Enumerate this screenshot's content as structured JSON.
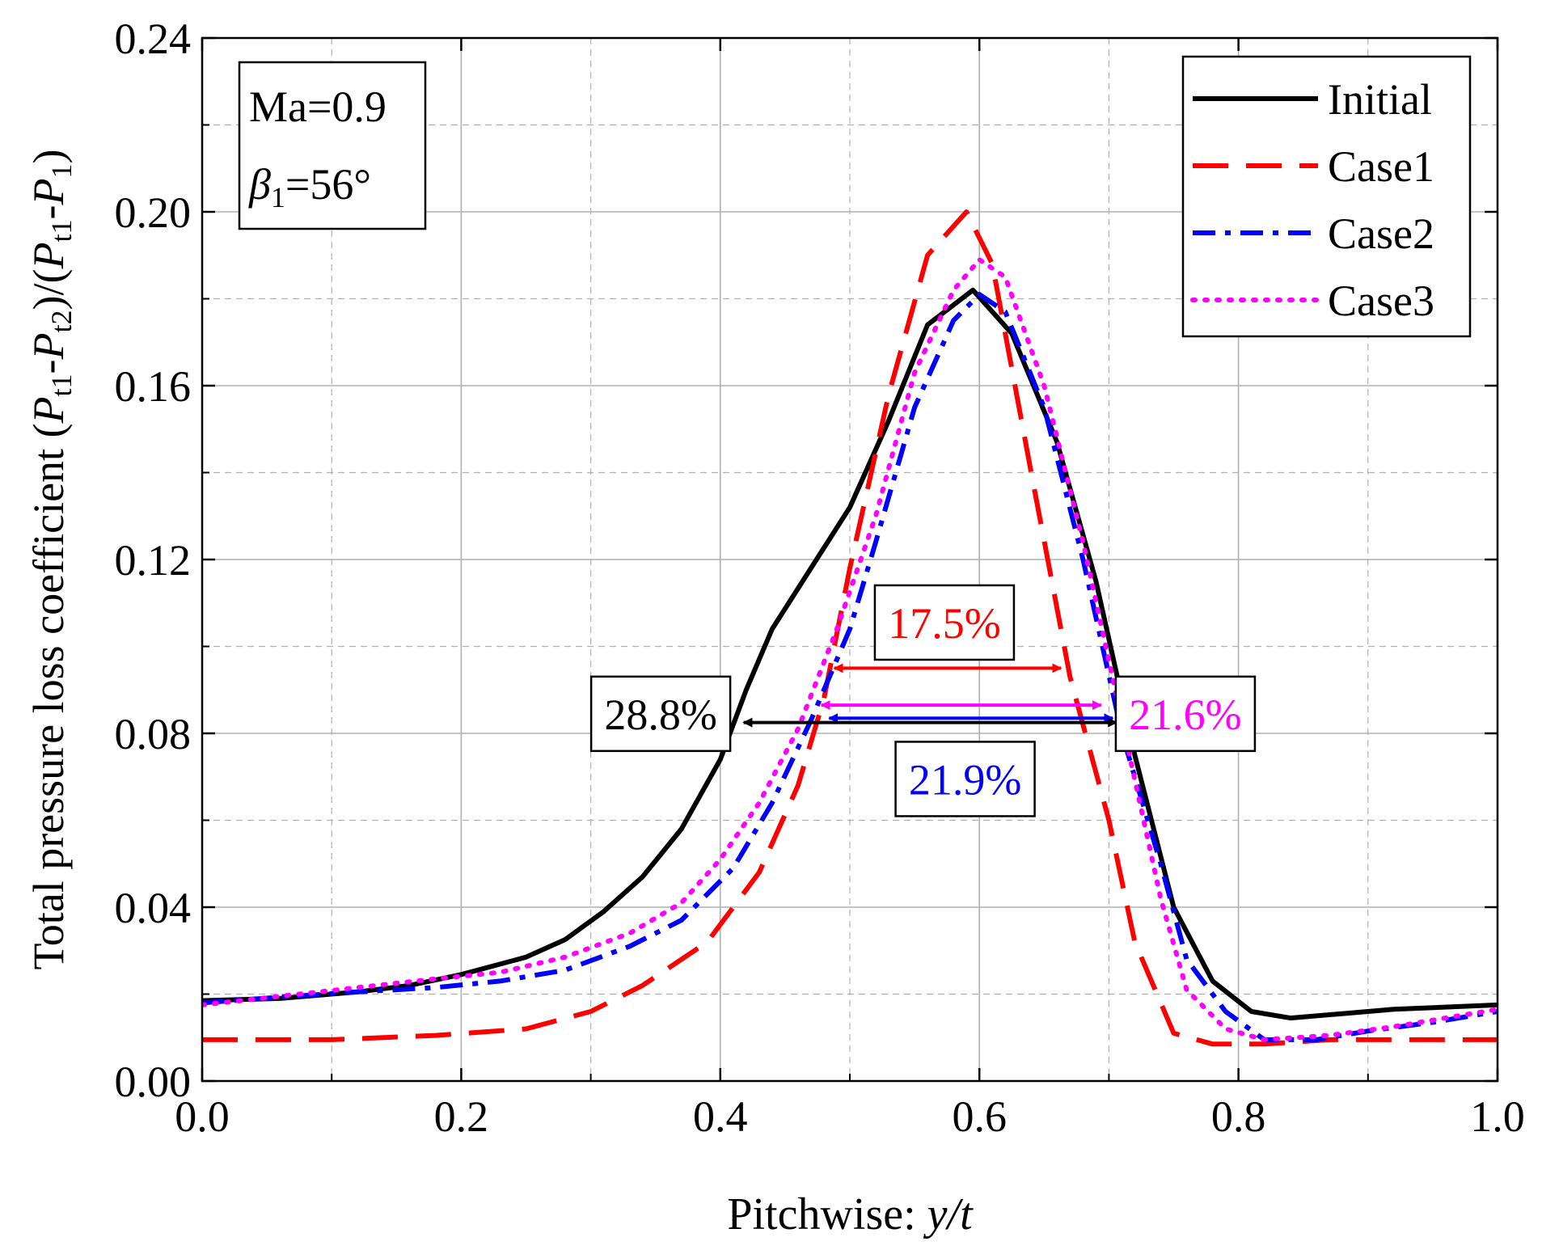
{
  "chart_data": {
    "type": "line",
    "title": "",
    "xlabel": "Pitchwise: ",
    "xlabel_var": "y/t",
    "ylabel": "Total pressure loss coefficient (P t1 - P t2 )/(P t1 - P 1 )",
    "xlim": [
      0.0,
      1.0
    ],
    "ylim": [
      0.0,
      0.24
    ],
    "x_ticks": [
      "0.0",
      "0.2",
      "0.4",
      "0.6",
      "0.8",
      "1.0"
    ],
    "y_ticks": [
      "0.00",
      "0.04",
      "0.08",
      "0.12",
      "0.16",
      "0.20",
      "0.24"
    ],
    "grid": true,
    "legend_position": "top-right",
    "condition_box": {
      "line1": "Ma=0.9",
      "line2_symbol": "β",
      "line2_sub": "1",
      "line2_value": "=56°"
    },
    "series": [
      {
        "name": "Initial",
        "color": "#000000",
        "style": "solid",
        "points": [
          [
            0.0,
            0.0185
          ],
          [
            0.06,
            0.019
          ],
          [
            0.12,
            0.0205
          ],
          [
            0.16,
            0.022
          ],
          [
            0.2,
            0.0245
          ],
          [
            0.25,
            0.0285
          ],
          [
            0.28,
            0.0325
          ],
          [
            0.31,
            0.039
          ],
          [
            0.34,
            0.047
          ],
          [
            0.37,
            0.058
          ],
          [
            0.4,
            0.074
          ],
          [
            0.42,
            0.09
          ],
          [
            0.44,
            0.104
          ],
          [
            0.47,
            0.118
          ],
          [
            0.5,
            0.132
          ],
          [
            0.53,
            0.152
          ],
          [
            0.56,
            0.174
          ],
          [
            0.595,
            0.182
          ],
          [
            0.625,
            0.172
          ],
          [
            0.66,
            0.147
          ],
          [
            0.69,
            0.115
          ],
          [
            0.72,
            0.075
          ],
          [
            0.75,
            0.04
          ],
          [
            0.78,
            0.023
          ],
          [
            0.81,
            0.016
          ],
          [
            0.84,
            0.0145
          ],
          [
            0.88,
            0.0155
          ],
          [
            0.92,
            0.0165
          ],
          [
            1.0,
            0.0175
          ]
        ]
      },
      {
        "name": "Case1",
        "color": "#ff0000",
        "style": "dashed",
        "points": [
          [
            0.0,
            0.0095
          ],
          [
            0.1,
            0.0095
          ],
          [
            0.18,
            0.0105
          ],
          [
            0.25,
            0.012
          ],
          [
            0.3,
            0.016
          ],
          [
            0.34,
            0.022
          ],
          [
            0.39,
            0.032
          ],
          [
            0.43,
            0.048
          ],
          [
            0.46,
            0.068
          ],
          [
            0.48,
            0.088
          ],
          [
            0.5,
            0.118
          ],
          [
            0.53,
            0.158
          ],
          [
            0.56,
            0.19
          ],
          [
            0.59,
            0.2
          ],
          [
            0.61,
            0.188
          ],
          [
            0.64,
            0.14
          ],
          [
            0.67,
            0.093
          ],
          [
            0.7,
            0.06
          ],
          [
            0.72,
            0.032
          ],
          [
            0.75,
            0.011
          ],
          [
            0.78,
            0.0085
          ],
          [
            0.82,
            0.0085
          ],
          [
            0.87,
            0.0095
          ],
          [
            0.92,
            0.0095
          ],
          [
            1.0,
            0.0095
          ]
        ]
      },
      {
        "name": "Case2",
        "color": "#0000ff",
        "style": "dashdot",
        "points": [
          [
            0.0,
            0.018
          ],
          [
            0.07,
            0.0195
          ],
          [
            0.12,
            0.0205
          ],
          [
            0.18,
            0.0215
          ],
          [
            0.23,
            0.023
          ],
          [
            0.28,
            0.0255
          ],
          [
            0.33,
            0.031
          ],
          [
            0.37,
            0.037
          ],
          [
            0.41,
            0.049
          ],
          [
            0.44,
            0.064
          ],
          [
            0.47,
            0.083
          ],
          [
            0.5,
            0.104
          ],
          [
            0.52,
            0.124
          ],
          [
            0.55,
            0.155
          ],
          [
            0.58,
            0.175
          ],
          [
            0.6,
            0.181
          ],
          [
            0.62,
            0.177
          ],
          [
            0.65,
            0.155
          ],
          [
            0.68,
            0.12
          ],
          [
            0.71,
            0.08
          ],
          [
            0.74,
            0.05
          ],
          [
            0.76,
            0.028
          ],
          [
            0.79,
            0.016
          ],
          [
            0.82,
            0.0095
          ],
          [
            0.86,
            0.0095
          ],
          [
            0.9,
            0.0115
          ],
          [
            0.95,
            0.0135
          ],
          [
            1.0,
            0.016
          ]
        ]
      },
      {
        "name": "Case3",
        "color": "#ff00ff",
        "style": "dotted",
        "points": [
          [
            0.0,
            0.0175
          ],
          [
            0.06,
            0.0195
          ],
          [
            0.12,
            0.0215
          ],
          [
            0.18,
            0.0235
          ],
          [
            0.23,
            0.025
          ],
          [
            0.28,
            0.0285
          ],
          [
            0.33,
            0.034
          ],
          [
            0.37,
            0.041
          ],
          [
            0.4,
            0.051
          ],
          [
            0.43,
            0.064
          ],
          [
            0.46,
            0.081
          ],
          [
            0.49,
            0.104
          ],
          [
            0.52,
            0.13
          ],
          [
            0.55,
            0.163
          ],
          [
            0.58,
            0.182
          ],
          [
            0.6,
            0.189
          ],
          [
            0.62,
            0.185
          ],
          [
            0.65,
            0.16
          ],
          [
            0.68,
            0.124
          ],
          [
            0.71,
            0.083
          ],
          [
            0.74,
            0.042
          ],
          [
            0.76,
            0.021
          ],
          [
            0.79,
            0.012
          ],
          [
            0.82,
            0.0095
          ],
          [
            0.87,
            0.0105
          ],
          [
            0.92,
            0.0125
          ],
          [
            1.0,
            0.0165
          ]
        ]
      }
    ],
    "annotations": [
      {
        "label": "17.5%",
        "color": "#ff0000",
        "x1": 0.488,
        "x2": 0.663,
        "y": 0.095,
        "box_x": 0.573,
        "box_y": 0.1055
      },
      {
        "label": "21.6%",
        "color": "#ff00ff",
        "x1": 0.478,
        "x2": 0.694,
        "y": 0.0865,
        "box_x": 0.759,
        "box_y": 0.0845
      },
      {
        "label": "21.9%",
        "color": "#0000ff",
        "x1": 0.484,
        "x2": 0.703,
        "y": 0.0835,
        "box_x": 0.589,
        "box_y": 0.0695
      },
      {
        "label": "28.8%",
        "color": "#000000",
        "x1": 0.418,
        "x2": 0.706,
        "y": 0.0825,
        "box_x": 0.354,
        "box_y": 0.0845
      }
    ]
  }
}
